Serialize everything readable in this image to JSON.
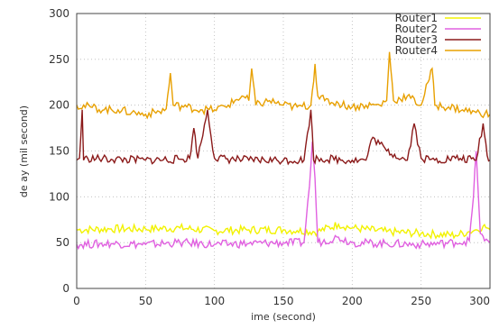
{
  "chart_data": {
    "type": "line",
    "xlabel": "ime (second)",
    "ylabel": "de ay (mil second)",
    "xlim": [
      0,
      300
    ],
    "ylim": [
      0,
      300
    ],
    "xticks": [
      "0",
      "50",
      "100",
      "150",
      "200",
      "250",
      "300"
    ],
    "yticks": [
      "0",
      "50",
      "100",
      "150",
      "200",
      "250",
      "300"
    ],
    "grid": true,
    "legend_position": "top-right",
    "series": [
      {
        "name": "Router1",
        "color": "#f2f200",
        "x": [
          0,
          25,
          50,
          75,
          100,
          125,
          150,
          160,
          175,
          190,
          200,
          225,
          250,
          275,
          285,
          290,
          295,
          298,
          300
        ],
        "y": [
          64,
          65,
          65,
          66,
          63,
          64,
          64,
          63,
          62,
          70,
          66,
          62,
          60,
          58,
          62,
          64,
          68,
          66,
          64
        ]
      },
      {
        "name": "Router2",
        "color": "#e060e0",
        "x": [
          0,
          25,
          50,
          75,
          100,
          125,
          150,
          165,
          169,
          171,
          173,
          175,
          190,
          200,
          225,
          250,
          275,
          285,
          288,
          290,
          293,
          296,
          300
        ],
        "y": [
          48,
          49,
          48,
          50,
          48,
          49,
          50,
          50,
          112,
          160,
          120,
          50,
          56,
          50,
          49,
          48,
          50,
          52,
          100,
          150,
          60,
          52,
          50
        ]
      },
      {
        "name": "Router3",
        "color": "#8b1a1a",
        "x": [
          0,
          2,
          4,
          5,
          8,
          25,
          50,
          75,
          82,
          85,
          88,
          95,
          100,
          125,
          150,
          165,
          170,
          172,
          175,
          200,
          210,
          215,
          225,
          240,
          245,
          250,
          260,
          275,
          290,
          295,
          298,
          300
        ],
        "y": [
          140,
          142,
          195,
          140,
          142,
          141,
          140,
          141,
          142,
          175,
          142,
          195,
          142,
          140,
          140,
          140,
          195,
          140,
          142,
          140,
          140,
          165,
          150,
          140,
          180,
          142,
          140,
          142,
          140,
          180,
          145,
          140
        ]
      },
      {
        "name": "Router4",
        "color": "#e8a000",
        "x": [
          0,
          10,
          20,
          30,
          40,
          50,
          60,
          65,
          68,
          70,
          80,
          90,
          100,
          110,
          120,
          125,
          127,
          130,
          140,
          150,
          160,
          170,
          173,
          175,
          180,
          190,
          200,
          210,
          220,
          225,
          227,
          230,
          240,
          250,
          255,
          258,
          260,
          270,
          280,
          290,
          300
        ],
        "y": [
          200,
          198,
          195,
          195,
          192,
          190,
          193,
          196,
          235,
          200,
          198,
          195,
          195,
          200,
          210,
          205,
          240,
          200,
          205,
          200,
          198,
          200,
          245,
          210,
          205,
          202,
          198,
          200,
          200,
          205,
          258,
          205,
          210,
          200,
          225,
          240,
          200,
          198,
          195,
          192,
          190
        ]
      }
    ]
  }
}
